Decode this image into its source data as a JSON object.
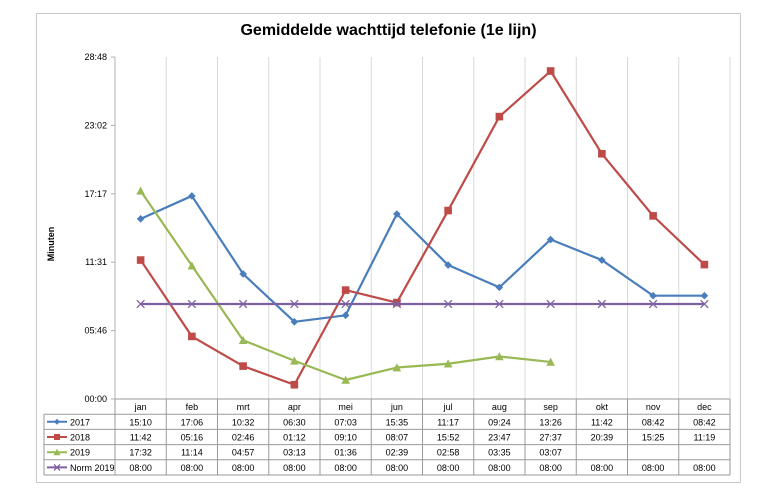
{
  "chart_data": {
    "type": "line",
    "title": "Gemiddelde wachttijd telefonie (1e lijn)",
    "ylabel": "Minuten",
    "xlabel": "",
    "y_ticks": [
      "00:00",
      "05:46",
      "11:31",
      "17:17",
      "23:02",
      "28:48"
    ],
    "ylim_minutes": [
      0,
      28.8
    ],
    "categories": [
      "jan",
      "feb",
      "mrt",
      "apr",
      "mei",
      "jun",
      "jul",
      "aug",
      "sep",
      "okt",
      "nov",
      "dec"
    ],
    "grid": "vertical",
    "legend": "data-table",
    "series": [
      {
        "name": "2017",
        "color": "#4a7ebb",
        "marker": "diamond",
        "labels": [
          "15:10",
          "17:06",
          "10:32",
          "06:30",
          "07:03",
          "15:35",
          "11:17",
          "09:24",
          "13:26",
          "11:42",
          "08:42",
          "08:42"
        ],
        "values": [
          15.17,
          17.1,
          10.53,
          6.5,
          7.05,
          15.58,
          11.28,
          9.4,
          13.43,
          11.7,
          8.7,
          8.7
        ]
      },
      {
        "name": "2018",
        "color": "#be4b48",
        "marker": "square",
        "labels": [
          "11:42",
          "05:16",
          "02:46",
          "01:12",
          "09:10",
          "08:07",
          "15:52",
          "23:47",
          "27:37",
          "20:39",
          "15:25",
          "11:19"
        ],
        "values": [
          11.7,
          5.27,
          2.77,
          1.2,
          9.17,
          8.12,
          15.87,
          23.78,
          27.62,
          20.65,
          15.42,
          11.32
        ]
      },
      {
        "name": "2019",
        "color": "#98b954",
        "marker": "triangle",
        "labels": [
          "17:32",
          "11:14",
          "04:57",
          "03:13",
          "01:36",
          "02:39",
          "02:58",
          "03:35",
          "03:07",
          "",
          "",
          ""
        ],
        "values": [
          17.53,
          11.23,
          4.95,
          3.22,
          1.6,
          2.65,
          2.97,
          3.58,
          3.12,
          null,
          null,
          null
        ]
      },
      {
        "name": "Norm 2019",
        "color": "#7d60a0",
        "marker": "x",
        "labels": [
          "08:00",
          "08:00",
          "08:00",
          "08:00",
          "08:00",
          "08:00",
          "08:00",
          "08:00",
          "08:00",
          "08:00",
          "08:00",
          "08:00"
        ],
        "values": [
          8,
          8,
          8,
          8,
          8,
          8,
          8,
          8,
          8,
          8,
          8,
          8
        ]
      }
    ]
  }
}
